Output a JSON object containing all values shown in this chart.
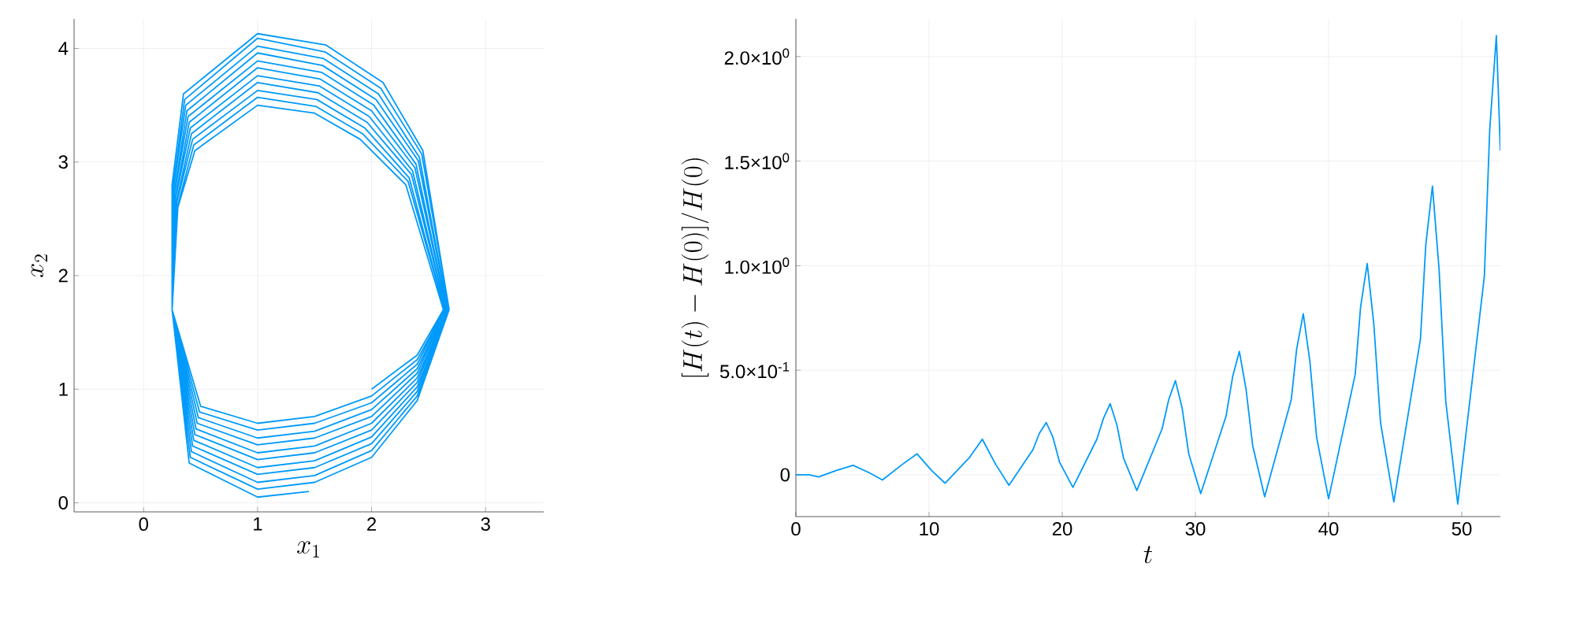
{
  "chart_data": [
    {
      "type": "line",
      "xlabel": "x_1",
      "ylabel": "x_2",
      "xlim": [
        -0.61,
        3.51
      ],
      "ylim": [
        -0.08,
        4.26
      ],
      "xticks": [
        0,
        1,
        2,
        3
      ],
      "yticks": [
        0,
        1,
        2,
        3,
        4
      ],
      "grid": true,
      "color": "#009afa",
      "x": [
        2.0,
        2.4,
        2.63,
        2.3,
        1.9,
        1.5,
        1.0,
        0.45,
        0.3,
        0.25,
        0.5,
        1.0,
        1.5,
        2.0,
        2.4,
        2.64,
        2.32,
        1.92,
        1.51,
        1.0,
        0.44,
        0.3,
        0.25,
        0.49,
        1.0,
        1.5,
        2.0,
        2.4,
        2.64,
        2.33,
        1.94,
        1.52,
        1.0,
        0.43,
        0.29,
        0.25,
        0.48,
        1.0,
        1.5,
        2.0,
        2.4,
        2.65,
        2.35,
        1.96,
        1.53,
        1.0,
        0.42,
        0.29,
        0.25,
        0.47,
        1.0,
        1.5,
        2.0,
        2.4,
        2.65,
        2.36,
        1.98,
        1.54,
        1.0,
        0.41,
        0.28,
        0.25,
        0.46,
        1.0,
        1.5,
        2.0,
        2.4,
        2.66,
        2.38,
        2.0,
        1.55,
        1.0,
        0.4,
        0.28,
        0.25,
        0.45,
        1.0,
        1.5,
        2.0,
        2.4,
        2.66,
        2.39,
        2.02,
        1.56,
        1.0,
        0.39,
        0.27,
        0.25,
        0.44,
        1.0,
        1.5,
        2.0,
        2.4,
        2.67,
        2.41,
        2.04,
        1.57,
        1.0,
        0.38,
        0.27,
        0.25,
        0.43,
        1.0,
        1.5,
        2.0,
        2.4,
        2.67,
        2.42,
        2.06,
        1.58,
        1.0,
        0.37,
        0.26,
        0.25,
        0.42,
        1.0,
        1.5,
        2.0,
        2.4,
        2.68,
        2.44,
        2.08,
        1.59,
        1.0,
        0.36,
        0.26,
        0.25,
        0.41,
        1.0,
        1.5,
        2.0,
        2.4,
        2.68,
        2.45,
        2.1,
        1.6,
        1.0,
        0.35,
        0.25,
        0.25,
        0.4,
        1.0,
        1.45
      ],
      "values": [
        1.0,
        1.3,
        1.7,
        2.8,
        3.2,
        3.43,
        3.5,
        3.1,
        2.6,
        1.7,
        0.85,
        0.7,
        0.76,
        0.94,
        1.26,
        1.7,
        2.83,
        3.25,
        3.49,
        3.57,
        3.15,
        2.62,
        1.7,
        0.8,
        0.64,
        0.7,
        0.88,
        1.22,
        1.7,
        2.86,
        3.3,
        3.55,
        3.63,
        3.2,
        2.64,
        1.7,
        0.75,
        0.57,
        0.63,
        0.82,
        1.18,
        1.7,
        2.89,
        3.35,
        3.61,
        3.7,
        3.25,
        2.66,
        1.7,
        0.7,
        0.51,
        0.57,
        0.76,
        1.14,
        1.7,
        2.92,
        3.4,
        3.67,
        3.76,
        3.3,
        2.68,
        1.7,
        0.65,
        0.44,
        0.5,
        0.7,
        1.1,
        1.7,
        2.95,
        3.45,
        3.73,
        3.83,
        3.35,
        2.7,
        1.7,
        0.6,
        0.38,
        0.44,
        0.64,
        1.06,
        1.7,
        2.98,
        3.5,
        3.79,
        3.89,
        3.4,
        2.72,
        1.7,
        0.55,
        0.31,
        0.37,
        0.58,
        1.02,
        1.7,
        3.01,
        3.55,
        3.85,
        3.96,
        3.45,
        2.74,
        1.7,
        0.5,
        0.25,
        0.31,
        0.52,
        0.98,
        1.7,
        3.04,
        3.6,
        3.91,
        4.02,
        3.5,
        2.76,
        1.7,
        0.45,
        0.18,
        0.24,
        0.46,
        0.94,
        1.7,
        3.07,
        3.65,
        3.97,
        4.09,
        3.55,
        2.78,
        1.7,
        0.4,
        0.12,
        0.18,
        0.4,
        0.9,
        1.7,
        3.1,
        3.7,
        4.03,
        4.13,
        3.6,
        2.8,
        1.7,
        0.35,
        0.05,
        0.1
      ]
    },
    {
      "type": "line",
      "xlabel": "t",
      "ylabel": "[H(t) - H(0)]/H(0)",
      "xlim": [
        0,
        52.9
      ],
      "ylim": [
        -0.2,
        2.18
      ],
      "xticks": [
        0,
        10,
        20,
        30,
        40,
        50
      ],
      "yticks": [
        0,
        {
          "value": 0.5,
          "label": "5.0×10$^{-1}$"
        },
        {
          "value": 1.0,
          "label": "1.0×10$^{0}$"
        },
        {
          "value": 1.5,
          "label": "1.5×10$^{0}$"
        },
        {
          "value": 2.0,
          "label": "2.0×10$^{0}$"
        }
      ],
      "grid": true,
      "color": "#009afa",
      "x": [
        0,
        1.0,
        1.7,
        3.0,
        4.3,
        5.5,
        6.5,
        8.0,
        9.1,
        10.2,
        11.2,
        13.0,
        14.0,
        15.0,
        16.0,
        17.8,
        18.3,
        18.8,
        19.3,
        19.8,
        20.8,
        22.6,
        23.1,
        23.6,
        24.1,
        24.6,
        25.6,
        27.5,
        28.0,
        28.5,
        29.0,
        29.5,
        30.4,
        32.3,
        32.8,
        33.3,
        33.8,
        34.3,
        35.2,
        37.2,
        37.6,
        38.1,
        38.6,
        39.1,
        40.0,
        42.0,
        42.4,
        42.9,
        43.4,
        43.9,
        44.9,
        46.9,
        47.3,
        47.8,
        48.3,
        48.8,
        49.7,
        51.7,
        52.1,
        52.6,
        52.9
      ],
      "values": [
        0,
        0.0,
        -0.01,
        0.02,
        0.045,
        0.01,
        -0.025,
        0.05,
        0.1,
        0.02,
        -0.04,
        0.08,
        0.17,
        0.05,
        -0.05,
        0.12,
        0.2,
        0.25,
        0.18,
        0.06,
        -0.06,
        0.17,
        0.27,
        0.34,
        0.24,
        0.08,
        -0.075,
        0.22,
        0.36,
        0.45,
        0.32,
        0.1,
        -0.09,
        0.28,
        0.47,
        0.59,
        0.41,
        0.14,
        -0.105,
        0.36,
        0.6,
        0.77,
        0.54,
        0.18,
        -0.115,
        0.48,
        0.8,
        1.01,
        0.72,
        0.25,
        -0.13,
        0.65,
        1.1,
        1.38,
        0.98,
        0.35,
        -0.14,
        0.95,
        1.65,
        2.1,
        1.55
      ]
    }
  ]
}
